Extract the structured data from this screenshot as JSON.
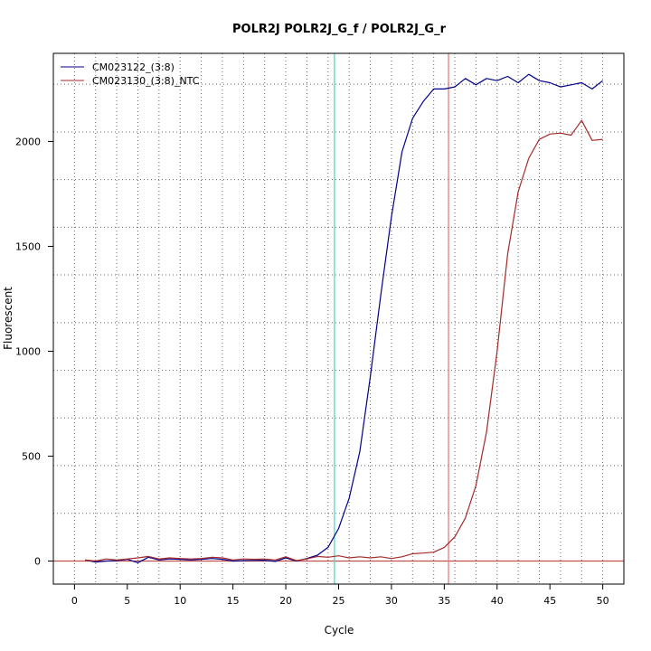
{
  "chart_data": {
    "type": "line",
    "title": "POLR2J  POLR2J_G_f / POLR2J_G_r",
    "xlabel": "Cycle",
    "ylabel": "Fluorescent",
    "xlim": [
      -2,
      52
    ],
    "ylim": [
      -110,
      2420
    ],
    "xticks": [
      0,
      5,
      10,
      15,
      20,
      25,
      30,
      35,
      40,
      45,
      50
    ],
    "yticks": [
      0,
      500,
      1000,
      1500,
      2000
    ],
    "grid": "dotted",
    "grid_x": [
      0,
      2,
      4,
      6,
      8,
      10,
      12,
      14,
      16,
      18,
      20,
      22,
      24,
      26,
      28,
      30,
      32,
      34,
      36,
      38,
      40,
      42,
      44,
      46,
      48,
      50
    ],
    "grid_y": [
      0,
      227,
      455,
      682,
      909,
      1136,
      1364,
      1591,
      1818,
      2045,
      2273
    ],
    "legend_position": "top-left",
    "series": [
      {
        "name": "CM023122_(3:8)",
        "color": "#00008B",
        "x": [
          1,
          2,
          3,
          4,
          5,
          6,
          7,
          8,
          9,
          10,
          11,
          12,
          13,
          14,
          15,
          16,
          17,
          18,
          19,
          20,
          21,
          22,
          23,
          24,
          25,
          26,
          27,
          28,
          29,
          30,
          31,
          32,
          33,
          34,
          35,
          36,
          37,
          38,
          39,
          40,
          41,
          42,
          43,
          44,
          45,
          46,
          47,
          48,
          49,
          50
        ],
        "values": [
          5,
          -5,
          0,
          2,
          8,
          -8,
          18,
          5,
          10,
          8,
          5,
          8,
          12,
          8,
          0,
          2,
          3,
          4,
          -2,
          15,
          0,
          12,
          28,
          65,
          155,
          300,
          520,
          880,
          1270,
          1640,
          1950,
          2110,
          2190,
          2250,
          2250,
          2260,
          2300,
          2270,
          2300,
          2290,
          2310,
          2280,
          2320,
          2290,
          2280,
          2260,
          2270,
          2280,
          2250,
          2290
        ]
      },
      {
        "name": "CM023130_(3:8)_NTC",
        "color": "#A52A2A",
        "x": [
          1,
          2,
          3,
          4,
          5,
          6,
          7,
          8,
          9,
          10,
          11,
          12,
          13,
          14,
          15,
          16,
          17,
          18,
          19,
          20,
          21,
          22,
          23,
          24,
          25,
          26,
          27,
          28,
          29,
          30,
          31,
          32,
          33,
          34,
          35,
          36,
          37,
          38,
          39,
          40,
          41,
          42,
          43,
          44,
          45,
          46,
          47,
          48,
          49,
          50
        ],
        "values": [
          5,
          0,
          10,
          5,
          10,
          15,
          22,
          10,
          15,
          12,
          10,
          12,
          18,
          15,
          5,
          10,
          8,
          10,
          5,
          20,
          2,
          10,
          22,
          18,
          25,
          15,
          20,
          15,
          20,
          12,
          20,
          35,
          38,
          42,
          65,
          115,
          205,
          360,
          615,
          1000,
          1465,
          1760,
          1920,
          2010,
          2035,
          2040,
          2030,
          2100,
          2005,
          2010
        ]
      }
    ],
    "vlines": [
      {
        "x": 24.6,
        "color": "#40E0D0"
      },
      {
        "x": 35.4,
        "color": "#E08080"
      }
    ],
    "hlines": [
      {
        "y": 0,
        "color": "#C0504D"
      }
    ]
  }
}
